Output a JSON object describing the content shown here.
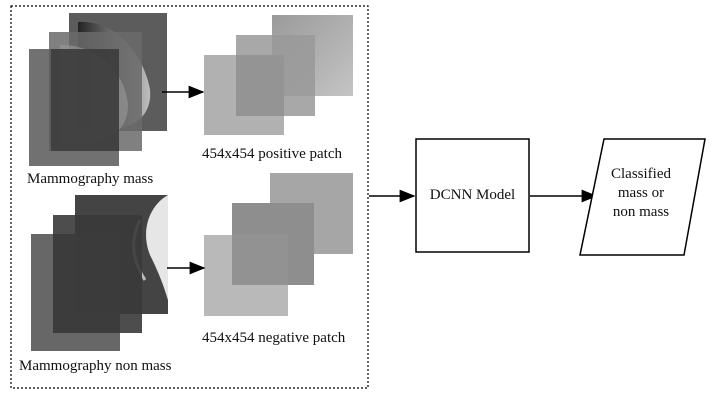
{
  "diagram": {
    "inputs": {
      "mass_label": "Mammography mass",
      "non_mass_label": "Mammography non mass"
    },
    "patches": {
      "positive_label": "454x454 positive patch",
      "negative_label": "454x454 negative patch"
    },
    "model": {
      "label": "DCNN Model"
    },
    "output": {
      "label_lines": [
        "Classified",
        "mass or",
        "non mass"
      ]
    }
  },
  "colors": {
    "background": "#f4f4f4",
    "panel": "#ffffff",
    "stroke": "#000000",
    "image_dark": "#2e2e2e",
    "image_mid": "#6f6f6f",
    "patch_light": "#b8b8b8",
    "patch_mid": "#8f8f8f"
  }
}
